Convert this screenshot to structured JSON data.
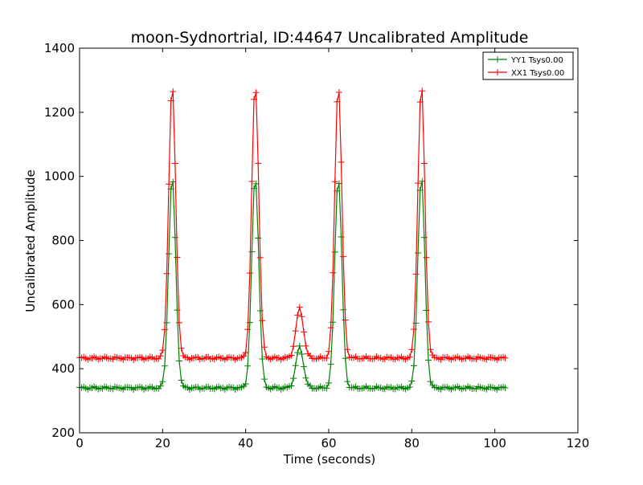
{
  "chart_data": {
    "type": "line",
    "title": "moon-Sydnortrial, ID:44647 Uncalibrated Amplitude",
    "xlabel": "Time (seconds)",
    "ylabel": "Uncalibrated Amplitude",
    "xlim": [
      0,
      120
    ],
    "ylim": [
      200,
      1400
    ],
    "x_ticks": [
      0,
      20,
      40,
      60,
      80,
      100,
      120
    ],
    "y_ticks": [
      200,
      400,
      600,
      800,
      1000,
      1200,
      1400
    ],
    "grid": false,
    "legend_position": "top-right",
    "peaks_description_source": "estimated from axes",
    "series": [
      {
        "name": "YY1 Tsys0.00",
        "color": "#008000",
        "marker": "+",
        "baseline": 340,
        "x_end": 102.5,
        "peaks": [
          {
            "center": 22.3,
            "height": 998,
            "width": 0.85
          },
          {
            "center": 42.3,
            "height": 998,
            "width": 0.85
          },
          {
            "center": 53.0,
            "height": 467,
            "width": 0.9
          },
          {
            "center": 62.3,
            "height": 998,
            "width": 0.85
          },
          {
            "center": 82.3,
            "height": 998,
            "width": 0.85
          }
        ]
      },
      {
        "name": "XX1 Tsys0.00",
        "color": "#ff0000",
        "marker": "+",
        "baseline": 433,
        "x_end": 102.5,
        "peaks": [
          {
            "center": 22.3,
            "height": 1285,
            "width": 0.85
          },
          {
            "center": 42.3,
            "height": 1288,
            "width": 0.85
          },
          {
            "center": 53.0,
            "height": 588,
            "width": 0.9
          },
          {
            "center": 62.3,
            "height": 1288,
            "width": 0.85
          },
          {
            "center": 82.3,
            "height": 1285,
            "width": 0.85
          }
        ]
      }
    ]
  }
}
